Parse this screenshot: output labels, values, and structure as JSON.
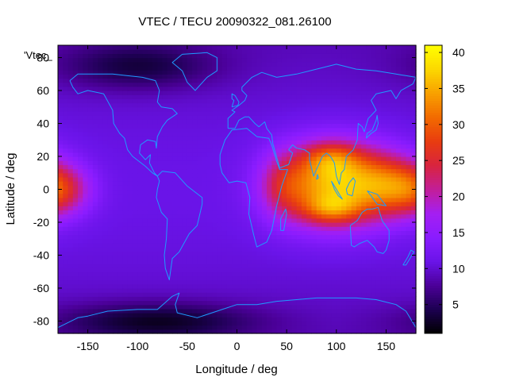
{
  "chart_data": {
    "type": "heatmap",
    "title": "VTEC / TECU 20090322_081.26100",
    "key_label": "'Vtec_",
    "xlabel": "Longitude / deg",
    "ylabel": "Latitude / deg",
    "xlim": [
      -180,
      180
    ],
    "ylim": [
      -87.5,
      87.5
    ],
    "xticks": [
      -150,
      -100,
      -50,
      0,
      50,
      100,
      150
    ],
    "yticks": [
      -80,
      -60,
      -40,
      -20,
      0,
      20,
      40,
      60,
      80
    ],
    "colorbar": {
      "range": [
        1,
        41
      ],
      "ticks": [
        5,
        10,
        15,
        20,
        25,
        30,
        35,
        40
      ]
    },
    "palette": [
      "#000000",
      "#1c0050",
      "#4b0098",
      "#6a14e8",
      "#8a1cff",
      "#a41ff2",
      "#c21e99",
      "#d8243e",
      "#e83c10",
      "#f26a00",
      "#f8a000",
      "#fcd700",
      "#ffff00"
    ],
    "background_tecu": 10,
    "features": [
      {
        "name": "main crest",
        "lon": 95,
        "lat": 3,
        "slon": 38,
        "slat": 17,
        "amp": 24
      },
      {
        "name": "north crest",
        "lon": 95,
        "lat": 19,
        "slon": 20,
        "slat": 7,
        "amp": 8
      },
      {
        "name": "south crest",
        "lon": 95,
        "lat": -12,
        "slon": 20,
        "slat": 6,
        "amp": 8
      },
      {
        "name": "east arm",
        "lon": 150,
        "lat": 3,
        "slon": 26,
        "slat": 14,
        "amp": 12
      },
      {
        "name": "west arm",
        "lon": 45,
        "lat": 2,
        "slon": 16,
        "slat": 14,
        "amp": 6
      },
      {
        "name": "pacific patch",
        "lon": -178,
        "lat": 0,
        "slon": 22,
        "slat": 11,
        "amp": 12
      },
      {
        "name": "polar low north",
        "lon": -100,
        "lat": 75,
        "slon": 55,
        "slat": 10,
        "amp": -6
      },
      {
        "name": "polar low south",
        "lon": -80,
        "lat": -80,
        "slon": 70,
        "slat": 8,
        "amp": -7
      }
    ],
    "coastlines": [
      {
        "name": "north america",
        "points": [
          [
            -168,
            66
          ],
          [
            -160,
            70
          ],
          [
            -140,
            70
          ],
          [
            -125,
            70
          ],
          [
            -110,
            69
          ],
          [
            -95,
            68
          ],
          [
            -82,
            66
          ],
          [
            -78,
            60
          ],
          [
            -80,
            53
          ],
          [
            -76,
            50
          ],
          [
            -65,
            49
          ],
          [
            -60,
            46
          ],
          [
            -70,
            42
          ],
          [
            -75,
            38
          ],
          [
            -80,
            32
          ],
          [
            -81,
            25
          ],
          [
            -82,
            29
          ],
          [
            -90,
            30
          ],
          [
            -97,
            27
          ],
          [
            -98,
            22
          ],
          [
            -92,
            18
          ],
          [
            -87,
            21
          ],
          [
            -88,
            16
          ],
          [
            -83,
            10
          ],
          [
            -80,
            8
          ],
          [
            -85,
            10
          ],
          [
            -92,
            14
          ],
          [
            -105,
            20
          ],
          [
            -110,
            24
          ],
          [
            -113,
            31
          ],
          [
            -118,
            34
          ],
          [
            -124,
            40
          ],
          [
            -125,
            48
          ],
          [
            -134,
            58
          ],
          [
            -150,
            60
          ],
          [
            -160,
            58
          ],
          [
            -165,
            62
          ],
          [
            -168,
            66
          ]
        ]
      },
      {
        "name": "greenland",
        "points": [
          [
            -55,
            82
          ],
          [
            -30,
            83
          ],
          [
            -20,
            80
          ],
          [
            -20,
            72
          ],
          [
            -30,
            68
          ],
          [
            -42,
            60
          ],
          [
            -50,
            65
          ],
          [
            -55,
            72
          ],
          [
            -65,
            77
          ],
          [
            -55,
            82
          ]
        ]
      },
      {
        "name": "south america",
        "points": [
          [
            -80,
            8
          ],
          [
            -75,
            11
          ],
          [
            -62,
            10
          ],
          [
            -50,
            2
          ],
          [
            -35,
            -5
          ],
          [
            -35,
            -9
          ],
          [
            -40,
            -22
          ],
          [
            -48,
            -27
          ],
          [
            -58,
            -38
          ],
          [
            -65,
            -42
          ],
          [
            -68,
            -55
          ],
          [
            -72,
            -48
          ],
          [
            -73,
            -40
          ],
          [
            -71,
            -30
          ],
          [
            -70,
            -18
          ],
          [
            -76,
            -14
          ],
          [
            -81,
            -5
          ],
          [
            -80,
            0
          ],
          [
            -78,
            5
          ],
          [
            -80,
            8
          ]
        ]
      },
      {
        "name": "africa",
        "points": [
          [
            -17,
            21
          ],
          [
            -12,
            30
          ],
          [
            -5,
            36
          ],
          [
            10,
            37
          ],
          [
            20,
            32
          ],
          [
            32,
            31
          ],
          [
            35,
            27
          ],
          [
            40,
            17
          ],
          [
            43,
            12
          ],
          [
            51,
            12
          ],
          [
            45,
            2
          ],
          [
            40,
            -10
          ],
          [
            35,
            -25
          ],
          [
            30,
            -32
          ],
          [
            20,
            -35
          ],
          [
            17,
            -28
          ],
          [
            12,
            -15
          ],
          [
            13,
            -5
          ],
          [
            9,
            4
          ],
          [
            0,
            5
          ],
          [
            -8,
            4
          ],
          [
            -15,
            10
          ],
          [
            -17,
            15
          ],
          [
            -17,
            21
          ]
        ]
      },
      {
        "name": "eurasia",
        "points": [
          [
            -9,
            37
          ],
          [
            -9,
            43
          ],
          [
            -2,
            47
          ],
          [
            -5,
            48
          ],
          [
            2,
            51
          ],
          [
            8,
            54
          ],
          [
            10,
            57
          ],
          [
            5,
            60
          ],
          [
            5,
            62
          ],
          [
            15,
            68
          ],
          [
            25,
            71
          ],
          [
            40,
            68
          ],
          [
            60,
            70
          ],
          [
            80,
            73
          ],
          [
            100,
            76
          ],
          [
            120,
            73
          ],
          [
            140,
            72
          ],
          [
            160,
            70
          ],
          [
            180,
            68
          ],
          [
            177,
            64
          ],
          [
            165,
            60
          ],
          [
            160,
            55
          ],
          [
            155,
            60
          ],
          [
            140,
            58
          ],
          [
            135,
            54
          ],
          [
            140,
            48
          ],
          [
            132,
            43
          ],
          [
            128,
            35
          ],
          [
            126,
            38
          ],
          [
            122,
            40
          ],
          [
            121,
            30
          ],
          [
            117,
            24
          ],
          [
            110,
            20
          ],
          [
            108,
            12
          ],
          [
            105,
            10
          ],
          [
            103,
            3
          ],
          [
            100,
            8
          ],
          [
            98,
            16
          ],
          [
            94,
            20
          ],
          [
            90,
            22
          ],
          [
            86,
            20
          ],
          [
            80,
            12
          ],
          [
            77,
            8
          ],
          [
            73,
            18
          ],
          [
            73,
            22
          ],
          [
            68,
            24
          ],
          [
            60,
            25
          ],
          [
            56,
            27
          ],
          [
            52,
            24
          ],
          [
            56,
            22
          ],
          [
            52,
            15
          ],
          [
            43,
            13
          ],
          [
            36,
            28
          ],
          [
            35,
            33
          ],
          [
            30,
            37
          ],
          [
            28,
            41
          ],
          [
            22,
            38
          ],
          [
            18,
            40
          ],
          [
            12,
            44
          ],
          [
            8,
            44
          ],
          [
            2,
            42
          ],
          [
            -2,
            37
          ],
          [
            -9,
            37
          ]
        ]
      },
      {
        "name": "great britain",
        "points": [
          [
            -5,
            50
          ],
          [
            1,
            51
          ],
          [
            2,
            53
          ],
          [
            -2,
            57
          ],
          [
            -5,
            58
          ],
          [
            -5,
            55
          ],
          [
            -3,
            54
          ],
          [
            -5,
            50
          ]
        ]
      },
      {
        "name": "japan",
        "points": [
          [
            130,
            31
          ],
          [
            135,
            34
          ],
          [
            140,
            36
          ],
          [
            142,
            40
          ],
          [
            141,
            45
          ],
          [
            140,
            42
          ],
          [
            136,
            36
          ],
          [
            131,
            34
          ],
          [
            130,
            31
          ]
        ]
      },
      {
        "name": "sumatra",
        "points": [
          [
            95,
            5
          ],
          [
            100,
            0
          ],
          [
            106,
            -6
          ],
          [
            102,
            -4
          ],
          [
            98,
            0
          ],
          [
            95,
            5
          ]
        ]
      },
      {
        "name": "borneo",
        "points": [
          [
            110,
            0
          ],
          [
            113,
            4
          ],
          [
            117,
            7
          ],
          [
            119,
            5
          ],
          [
            116,
            -4
          ],
          [
            111,
            -3
          ],
          [
            110,
            0
          ]
        ]
      },
      {
        "name": "sri lanka",
        "points": [
          [
            80,
            6
          ],
          [
            82,
            7
          ],
          [
            81,
            9
          ],
          [
            80,
            6
          ]
        ]
      },
      {
        "name": "madagascar",
        "points": [
          [
            44,
            -25
          ],
          [
            47,
            -25
          ],
          [
            50,
            -15
          ],
          [
            49,
            -12
          ],
          [
            44,
            -18
          ],
          [
            44,
            -25
          ]
        ]
      },
      {
        "name": "new guinea",
        "points": [
          [
            131,
            -1
          ],
          [
            141,
            -3
          ],
          [
            150,
            -10
          ],
          [
            141,
            -9
          ],
          [
            135,
            -4
          ],
          [
            131,
            -1
          ]
        ]
      },
      {
        "name": "australia",
        "points": [
          [
            114,
            -22
          ],
          [
            115,
            -34
          ],
          [
            118,
            -35
          ],
          [
            123,
            -33
          ],
          [
            131,
            -31
          ],
          [
            138,
            -35
          ],
          [
            141,
            -38
          ],
          [
            147,
            -39
          ],
          [
            150,
            -37
          ],
          [
            153,
            -31
          ],
          [
            153,
            -25
          ],
          [
            146,
            -19
          ],
          [
            142,
            -11
          ],
          [
            136,
            -12
          ],
          [
            131,
            -12
          ],
          [
            126,
            -14
          ],
          [
            121,
            -19
          ],
          [
            114,
            -22
          ]
        ]
      },
      {
        "name": "new zealand",
        "points": [
          [
            167,
            -46
          ],
          [
            172,
            -41
          ],
          [
            175,
            -37
          ],
          [
            178,
            -38
          ],
          [
            174,
            -42
          ],
          [
            170,
            -46
          ],
          [
            167,
            -46
          ]
        ]
      },
      {
        "name": "antarctica",
        "points": [
          [
            -180,
            -84
          ],
          [
            -160,
            -78
          ],
          [
            -150,
            -77
          ],
          [
            -130,
            -74
          ],
          [
            -100,
            -73
          ],
          [
            -80,
            -73
          ],
          [
            -65,
            -65
          ],
          [
            -58,
            -63
          ],
          [
            -62,
            -70
          ],
          [
            -60,
            -75
          ],
          [
            -40,
            -78
          ],
          [
            -20,
            -74
          ],
          [
            0,
            -70
          ],
          [
            20,
            -70
          ],
          [
            40,
            -68
          ],
          [
            60,
            -67
          ],
          [
            80,
            -66
          ],
          [
            100,
            -66
          ],
          [
            120,
            -66
          ],
          [
            140,
            -67
          ],
          [
            160,
            -70
          ],
          [
            170,
            -74
          ],
          [
            180,
            -84
          ]
        ]
      }
    ]
  }
}
